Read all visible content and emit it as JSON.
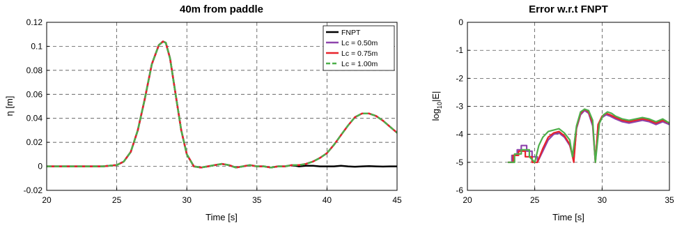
{
  "chart_data": [
    {
      "type": "line",
      "title": "40m from paddle",
      "xlabel": "Time [s]",
      "ylabel": "η [m]",
      "xlim": [
        20,
        45
      ],
      "ylim": [
        -0.02,
        0.12
      ],
      "xticks": [
        20,
        25,
        30,
        35,
        40,
        45
      ],
      "yticks": [
        -0.02,
        0,
        0.02,
        0.04,
        0.06,
        0.08,
        0.1,
        0.12
      ],
      "xtick_labels": [
        "20",
        "25",
        "30",
        "35",
        "40",
        "45"
      ],
      "ytick_labels": [
        "-0.02",
        "0",
        "0.02",
        "0.04",
        "0.06",
        "0.08",
        "0.1",
        "0.12"
      ],
      "grid": true,
      "legend_position": "top-right",
      "series": [
        {
          "name": "FNPT",
          "color": "#000000",
          "dash": "solid",
          "x": [
            20,
            22,
            24,
            25,
            25.5,
            26,
            26.5,
            27,
            27.5,
            28,
            28.3,
            28.5,
            28.8,
            29.2,
            29.6,
            30,
            30.5,
            31,
            31.5,
            32,
            32.5,
            33,
            33.5,
            34,
            34.5,
            35,
            35.5,
            36,
            36.5,
            37,
            37.5,
            38,
            38.5,
            39,
            39.5,
            40,
            40.5,
            41,
            41.5,
            42,
            42.5,
            43,
            43.5,
            44,
            44.5,
            45
          ],
          "y": [
            0,
            0,
            0,
            0.001,
            0.004,
            0.012,
            0.03,
            0.056,
            0.085,
            0.101,
            0.104,
            0.103,
            0.09,
            0.06,
            0.03,
            0.01,
            0,
            -0.001,
            0,
            0.001,
            0.002,
            0.001,
            -0.001,
            0,
            0.001,
            0,
            0,
            -0.001,
            0,
            0,
            0.001,
            0,
            0.0005,
            0.0005,
            0,
            0,
            0,
            0.0005,
            0,
            -0.0003,
            0,
            0.0002,
            0,
            -0.0002,
            0,
            0
          ]
        },
        {
          "name": "Lc = 0.50m",
          "color": "#8e44ad",
          "dash": "solid",
          "x": [
            20,
            22,
            24,
            25,
            25.5,
            26,
            26.5,
            27,
            27.5,
            28,
            28.3,
            28.5,
            28.8,
            29.2,
            29.6,
            30,
            30.5,
            31,
            31.5,
            32,
            32.5,
            33,
            33.5,
            34,
            34.5,
            35,
            35.5,
            36,
            36.5,
            37,
            37.5,
            38,
            38.5,
            39,
            39.5,
            40,
            40.5,
            41,
            41.5,
            42,
            42.5,
            43,
            43.5,
            44,
            44.5,
            45
          ],
          "y": [
            0,
            0,
            0,
            0.001,
            0.004,
            0.012,
            0.03,
            0.056,
            0.085,
            0.101,
            0.104,
            0.103,
            0.09,
            0.06,
            0.03,
            0.01,
            0,
            -0.001,
            0,
            0.001,
            0.002,
            0.001,
            -0.001,
            0,
            0.001,
            0,
            0,
            -0.001,
            0,
            0,
            0.001,
            0.001,
            0.002,
            0.004,
            0.007,
            0.011,
            0.018,
            0.026,
            0.034,
            0.041,
            0.044,
            0.044,
            0.042,
            0.038,
            0.033,
            0.028
          ]
        },
        {
          "name": "Lc = 0.75m",
          "color": "#e8222b",
          "dash": "solid",
          "x": [
            20,
            22,
            24,
            25,
            25.5,
            26,
            26.5,
            27,
            27.5,
            28,
            28.3,
            28.5,
            28.8,
            29.2,
            29.6,
            30,
            30.5,
            31,
            31.5,
            32,
            32.5,
            33,
            33.5,
            34,
            34.5,
            35,
            35.5,
            36,
            36.5,
            37,
            37.5,
            38,
            38.5,
            39,
            39.5,
            40,
            40.5,
            41,
            41.5,
            42,
            42.5,
            43,
            43.5,
            44,
            44.5,
            45
          ],
          "y": [
            0,
            0,
            0,
            0.001,
            0.004,
            0.012,
            0.03,
            0.056,
            0.085,
            0.101,
            0.104,
            0.103,
            0.09,
            0.06,
            0.03,
            0.01,
            0,
            -0.001,
            0,
            0.001,
            0.002,
            0.001,
            -0.001,
            0,
            0.001,
            0,
            0,
            -0.001,
            0,
            0,
            0.001,
            0.001,
            0.002,
            0.004,
            0.007,
            0.011,
            0.018,
            0.026,
            0.034,
            0.041,
            0.044,
            0.044,
            0.042,
            0.038,
            0.033,
            0.028
          ]
        },
        {
          "name": "Lc = 1.00m",
          "color": "#4daf4a",
          "dash": "dashed",
          "x": [
            20,
            22,
            24,
            25,
            25.5,
            26,
            26.5,
            27,
            27.5,
            28,
            28.3,
            28.5,
            28.8,
            29.2,
            29.6,
            30,
            30.5,
            31,
            31.5,
            32,
            32.5,
            33,
            33.5,
            34,
            34.5,
            35,
            35.5,
            36,
            36.5,
            37,
            37.5,
            38,
            38.5,
            39,
            39.5,
            40,
            40.5,
            41,
            41.5,
            42,
            42.5,
            43,
            43.5,
            44,
            44.5,
            45
          ],
          "y": [
            0,
            0,
            0,
            0.001,
            0.004,
            0.012,
            0.03,
            0.056,
            0.085,
            0.101,
            0.104,
            0.103,
            0.09,
            0.06,
            0.03,
            0.01,
            0,
            -0.001,
            0,
            0.001,
            0.002,
            0.001,
            -0.001,
            0,
            0.001,
            0,
            0,
            -0.001,
            0,
            0,
            0.001,
            0.001,
            0.002,
            0.004,
            0.007,
            0.011,
            0.018,
            0.026,
            0.034,
            0.041,
            0.044,
            0.044,
            0.042,
            0.038,
            0.033,
            0.028
          ]
        }
      ]
    },
    {
      "type": "line",
      "title": "Error w.r.t FNPT",
      "xlabel": "Time [s]",
      "ylabel_parts": [
        "log",
        "10",
        "|E|"
      ],
      "xlim": [
        20,
        35
      ],
      "ylim": [
        -6,
        0
      ],
      "xticks": [
        20,
        25,
        30,
        35
      ],
      "yticks": [
        -6,
        -5,
        -4,
        -3,
        -2,
        -1,
        0
      ],
      "xtick_labels": [
        "20",
        "25",
        "30",
        "35"
      ],
      "ytick_labels": [
        "-6",
        "-5",
        "-4",
        "-3",
        "-2",
        "-1",
        "0"
      ],
      "grid": true,
      "series": [
        {
          "name": "Lc = 0.50m",
          "color": "#8e44ad",
          "x": [
            23.0,
            23.3,
            23.3,
            23.7,
            23.7,
            24.0,
            24.0,
            24.4,
            24.4,
            24.8,
            24.8,
            25.2,
            25.2,
            25.6,
            26.0,
            26.4,
            26.8,
            27.2,
            27.6,
            27.9,
            28.1,
            28.4,
            28.7,
            29.0,
            29.3,
            29.5,
            29.7,
            30.0,
            30.3,
            30.6,
            31.0,
            31.5,
            32.0,
            32.5,
            33.0,
            33.5,
            34.0,
            34.5,
            35.0
          ],
          "y": [
            -5.0,
            -5.0,
            -4.75,
            -4.75,
            -4.55,
            -4.55,
            -4.4,
            -4.4,
            -4.6,
            -4.6,
            -4.8,
            -4.8,
            -5.0,
            -4.6,
            -4.2,
            -4.0,
            -3.95,
            -4.1,
            -4.4,
            -4.9,
            -3.8,
            -3.3,
            -3.15,
            -3.25,
            -3.7,
            -5.0,
            -3.7,
            -3.4,
            -3.3,
            -3.35,
            -3.45,
            -3.55,
            -3.6,
            -3.55,
            -3.5,
            -3.55,
            -3.65,
            -3.55,
            -3.65
          ]
        },
        {
          "name": "Lc = 0.75m",
          "color": "#e8222b",
          "x": [
            23.0,
            23.4,
            23.4,
            23.8,
            23.8,
            24.3,
            24.3,
            24.8,
            24.8,
            25.2,
            25.6,
            26.0,
            26.4,
            26.8,
            27.2,
            27.6,
            27.9,
            28.1,
            28.4,
            28.7,
            29.0,
            29.3,
            29.5,
            29.7,
            30.0,
            30.3,
            30.6,
            31.0,
            31.5,
            32.0,
            32.5,
            33.0,
            33.5,
            34.0,
            34.5,
            35.0
          ],
          "y": [
            -5.0,
            -5.0,
            -4.75,
            -4.75,
            -4.6,
            -4.6,
            -4.8,
            -4.8,
            -5.0,
            -5.0,
            -4.5,
            -4.1,
            -3.95,
            -3.9,
            -4.05,
            -4.35,
            -5.0,
            -3.75,
            -3.25,
            -3.1,
            -3.2,
            -3.6,
            -5.0,
            -3.65,
            -3.35,
            -3.25,
            -3.3,
            -3.4,
            -3.5,
            -3.55,
            -3.5,
            -3.45,
            -3.5,
            -3.6,
            -3.5,
            -3.6
          ]
        },
        {
          "name": "Lc = 1.00m",
          "color": "#4daf4a",
          "x": [
            23.0,
            23.5,
            23.5,
            24.0,
            24.0,
            24.6,
            24.6,
            25.0,
            25.3,
            25.6,
            26.0,
            26.4,
            26.8,
            27.2,
            27.6,
            27.8,
            28.1,
            28.4,
            28.7,
            29.0,
            29.3,
            29.5,
            29.8,
            30.1,
            30.4,
            30.7,
            31.0,
            31.5,
            32.0,
            32.5,
            33.0,
            33.5,
            34.0,
            34.5,
            35.0
          ],
          "y": [
            -5.0,
            -5.0,
            -4.7,
            -4.7,
            -4.55,
            -4.55,
            -4.8,
            -5.0,
            -4.4,
            -4.1,
            -3.9,
            -3.85,
            -3.8,
            -3.95,
            -4.2,
            -4.8,
            -3.7,
            -3.2,
            -3.1,
            -3.15,
            -3.5,
            -5.0,
            -3.6,
            -3.3,
            -3.2,
            -3.25,
            -3.35,
            -3.45,
            -3.5,
            -3.45,
            -3.4,
            -3.45,
            -3.55,
            -3.45,
            -3.6
          ]
        }
      ]
    }
  ]
}
